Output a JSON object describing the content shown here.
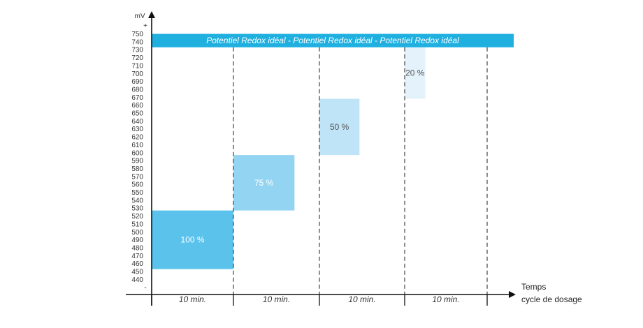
{
  "chart_data": {
    "type": "bar",
    "ylabel": "mV",
    "y_top_marker": "+",
    "y_bottom_marker": "-",
    "ylim": [
      440,
      750
    ],
    "y_ticks": [
      750,
      740,
      730,
      720,
      710,
      700,
      690,
      680,
      670,
      660,
      650,
      640,
      630,
      620,
      610,
      600,
      590,
      580,
      570,
      560,
      550,
      540,
      530,
      520,
      510,
      500,
      490,
      480,
      470,
      460,
      450,
      440
    ],
    "xlabel_line1": "Temps",
    "xlabel_line2": "cycle de dosage",
    "ideal_band": {
      "label": "Potentiel Redox idéal - Potentiel Redox idéal - Potentiel Redox idéal",
      "from": 733,
      "to": 750,
      "color": "#1fb0e0"
    },
    "intervals": [
      "10 min.",
      "10 min.",
      "10 min.",
      "10 min."
    ],
    "bars": [
      {
        "label": "100 %",
        "interval": 0,
        "start_fraction": 0,
        "end_fraction": 1,
        "from": 453,
        "to": 527,
        "color": "#5bc2ec",
        "text_color": "#ffffff"
      },
      {
        "label": "75 %",
        "interval": 1,
        "start_fraction": 0,
        "end_fraction": 0.71,
        "from": 527,
        "to": 597,
        "color": "#93d4f3",
        "text_color": "#ffffff"
      },
      {
        "label": "50 %",
        "interval": 2,
        "start_fraction": 0,
        "end_fraction": 0.47,
        "from": 597,
        "to": 668,
        "color": "#bfe3f7",
        "text_color": "#555555"
      },
      {
        "label": "20 %",
        "interval": 3,
        "start_fraction": 0,
        "end_fraction": 0.25,
        "from": 668,
        "to": 733,
        "color": "#e3f2fb",
        "text_color": "#555555"
      }
    ],
    "grid": false,
    "legend": "none"
  }
}
